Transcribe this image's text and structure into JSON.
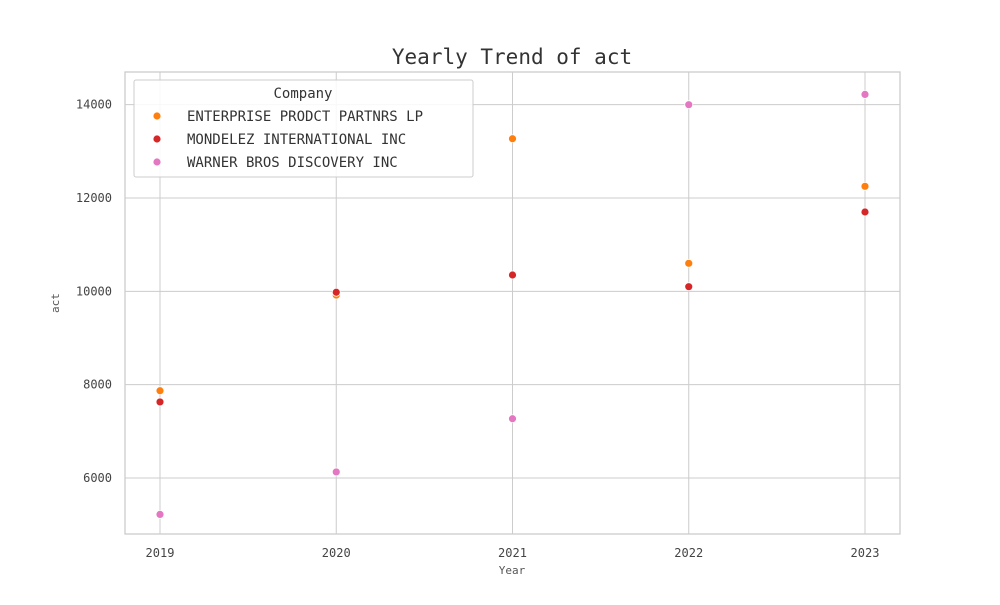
{
  "chart_data": {
    "type": "scatter",
    "title": "Yearly Trend of act",
    "xlabel": "Year",
    "ylabel": "act",
    "x": [
      "2019",
      "2020",
      "2021",
      "2022",
      "2023"
    ],
    "yticks": [
      6000,
      8000,
      10000,
      12000,
      14000
    ],
    "ylim": [
      4800,
      14700
    ],
    "grid": true,
    "legend": {
      "title": "Company",
      "placement": "top-left"
    },
    "series": [
      {
        "name": "ENTERPRISE PRODCT PARTNRS LP",
        "color": "#ff7f0e",
        "values": [
          7870,
          9920,
          13270,
          10600,
          12250
        ]
      },
      {
        "name": "MONDELEZ INTERNATIONAL INC",
        "color": "#d62728",
        "values": [
          7630,
          9980,
          10350,
          10100,
          11700
        ]
      },
      {
        "name": "WARNER BROS DISCOVERY INC",
        "color": "#e377c2",
        "values": [
          5220,
          6130,
          7270,
          14000,
          14220
        ]
      }
    ]
  }
}
